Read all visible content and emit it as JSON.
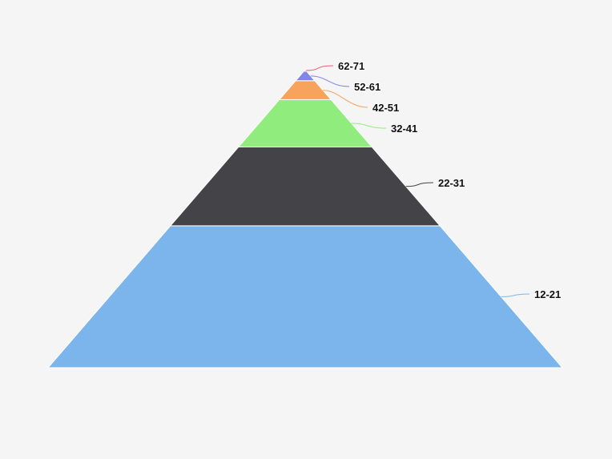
{
  "chart_data": {
    "type": "pyramid",
    "title": "",
    "legend": "none",
    "categories": [
      "12-21",
      "22-31",
      "32-41",
      "42-51",
      "52-61",
      "62-71"
    ],
    "values": [
      45,
      25,
      15,
      6,
      3,
      0.5
    ],
    "colors": [
      "#7cb5ec",
      "#434348",
      "#90ed7d",
      "#f7a35c",
      "#8085e9",
      "#f15c80"
    ]
  }
}
